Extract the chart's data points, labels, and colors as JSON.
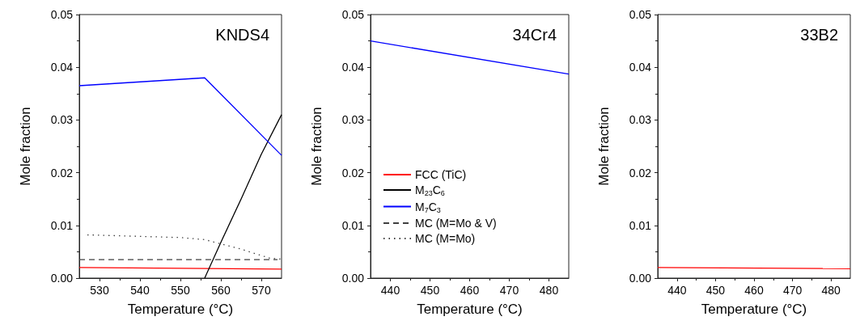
{
  "chart_data": [
    {
      "type": "line",
      "title": "KNDS4",
      "xlabel": "Temperature (°C)",
      "ylabel": "Mole fraction",
      "xlim": [
        525,
        575
      ],
      "xticks": [
        530,
        540,
        550,
        560,
        570
      ],
      "ylim": [
        0,
        0.05
      ],
      "yticks": [
        {
          "value": 0,
          "label": "0.00"
        },
        {
          "value": 0.01,
          "label": "0.01"
        },
        {
          "value": 0.02,
          "label": "0.02"
        },
        {
          "value": 0.03,
          "label": "0.03"
        },
        {
          "value": 0.04,
          "label": "0.04"
        },
        {
          "value": 0.05,
          "label": "0.05"
        }
      ],
      "grid": false,
      "legend": false,
      "marker": "none",
      "series": [
        {
          "color": "#ff0000",
          "line_style": "solid",
          "x": [
            525,
            575
          ],
          "values": [
            0.002,
            0.0017
          ]
        },
        {
          "color": "#000000",
          "line_style": "solid",
          "x": [
            556,
            560,
            565,
            570,
            575
          ],
          "values": [
            0,
            0.0068,
            0.015,
            0.0235,
            0.031
          ]
        },
        {
          "color": "#0000ff",
          "line_style": "solid",
          "x": [
            525,
            556,
            575
          ],
          "values": [
            0.0365,
            0.038,
            0.0233
          ]
        },
        {
          "color": "#404040",
          "line_style": "dashed",
          "x": [
            525,
            574
          ],
          "values": [
            0.0035,
            0.0035
          ]
        },
        {
          "color": "#404040",
          "line_style": "dotted",
          "x": [
            527,
            550,
            556,
            565,
            572,
            575
          ],
          "values": [
            0.0082,
            0.0077,
            0.0073,
            0.0055,
            0.0038,
            0.0036
          ]
        }
      ]
    },
    {
      "type": "line",
      "title": "34Cr4",
      "xlabel": "Temperature (°C)",
      "ylabel": "Mole fraction",
      "xlim": [
        435,
        485
      ],
      "xticks": [
        440,
        450,
        460,
        470,
        480
      ],
      "ylim": [
        0,
        0.05
      ],
      "yticks": [
        {
          "value": 0,
          "label": "0.00"
        },
        {
          "value": 0.01,
          "label": "0.01"
        },
        {
          "value": 0.02,
          "label": "0.02"
        },
        {
          "value": 0.03,
          "label": "0.03"
        },
        {
          "value": 0.04,
          "label": "0.04"
        },
        {
          "value": 0.05,
          "label": "0.05"
        }
      ],
      "grid": false,
      "legend": "bottom left",
      "marker": "none",
      "series": [
        {
          "name": "FCC (TiC)",
          "color": "#ff0000",
          "line_style": "solid"
        },
        {
          "name": "M$_{23}$C$_{6}$",
          "color": "#000000",
          "line_style": "solid"
        },
        {
          "name": "M$_{7}$C$_{3}$",
          "color": "#0000ff",
          "line_style": "solid",
          "x": [
            435,
            485
          ],
          "values": [
            0.045,
            0.0387
          ]
        },
        {
          "name": "MC (M=Mo & V)",
          "color": "#404040",
          "line_style": "dashed"
        },
        {
          "name": "MC (M=Mo)",
          "color": "#404040",
          "line_style": "dotted"
        }
      ]
    },
    {
      "type": "line",
      "title": "33B2",
      "xlabel": "Temperature (°C)",
      "ylabel": "Mole fraction",
      "xlim": [
        435,
        485
      ],
      "xticks": [
        440,
        450,
        460,
        470,
        480
      ],
      "ylim": [
        0,
        0.05
      ],
      "yticks": [
        {
          "value": 0,
          "label": "0.00"
        },
        {
          "value": 0.01,
          "label": "0.01"
        },
        {
          "value": 0.02,
          "label": "0.02"
        },
        {
          "value": 0.03,
          "label": "0.03"
        },
        {
          "value": 0.04,
          "label": "0.04"
        },
        {
          "value": 0.05,
          "label": "0.05"
        }
      ],
      "grid": false,
      "legend": false,
      "marker": "none",
      "series": [
        {
          "color": "#ff0000",
          "line_style": "solid",
          "x": [
            435,
            485
          ],
          "values": [
            0.002,
            0.0018
          ]
        }
      ]
    }
  ]
}
